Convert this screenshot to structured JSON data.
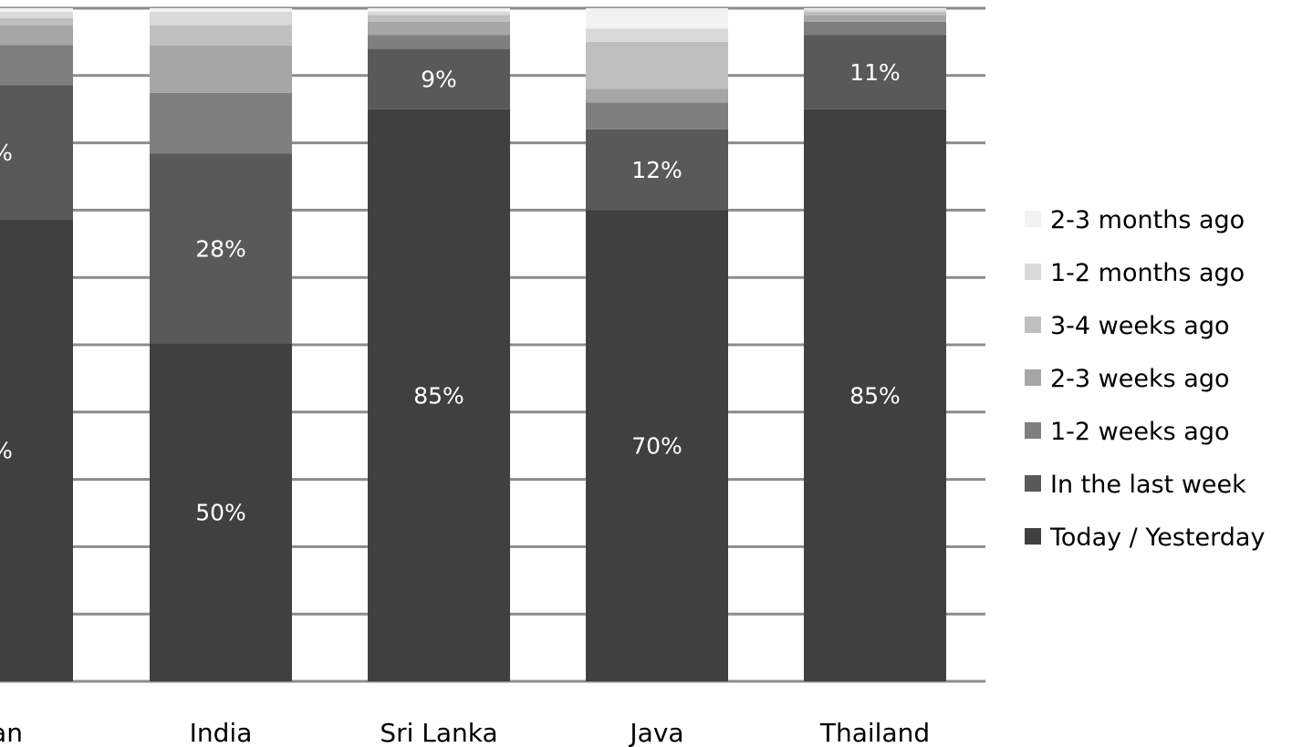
{
  "chart_data": {
    "type": "bar",
    "stacked": true,
    "percent_scale": true,
    "categories": [
      "tan",
      "India",
      "Sri Lanka",
      "Java",
      "Thailand"
    ],
    "series": [
      {
        "name": "Today / Yesterday",
        "color": "#404040",
        "values": [
          69,
          50,
          85,
          70,
          85
        ]
      },
      {
        "name": "In the last week",
        "color": "#595959",
        "values": [
          20,
          28,
          9,
          12,
          11
        ]
      },
      {
        "name": "1-2 weeks ago",
        "color": "#7f7f7f",
        "values": [
          6,
          9,
          2,
          4,
          2
        ]
      },
      {
        "name": "2-3 weeks ago",
        "color": "#a6a6a6",
        "values": [
          3,
          7,
          2,
          2,
          1
        ]
      },
      {
        "name": "3-4 weeks ago",
        "color": "#bfbfbf",
        "values": [
          1,
          3,
          1,
          7,
          0.5
        ]
      },
      {
        "name": "1-2 months ago",
        "color": "#d9d9d9",
        "values": [
          1,
          2,
          0.5,
          2,
          0.3
        ]
      },
      {
        "name": "2-3 months ago",
        "color": "#f2f2f2",
        "values": [
          0.5,
          0.5,
          0.5,
          3,
          0.2
        ]
      }
    ],
    "data_labels": [
      {
        "series": "Today / Yesterday",
        "category": "tan",
        "text": "%"
      },
      {
        "series": "In the last week",
        "category": "tan",
        "text": "%"
      },
      {
        "series": "Today / Yesterday",
        "category": "India",
        "text": "50%"
      },
      {
        "series": "In the last week",
        "category": "India",
        "text": "28%"
      },
      {
        "series": "Today / Yesterday",
        "category": "Sri Lanka",
        "text": "85%"
      },
      {
        "series": "In the last week",
        "category": "Sri Lanka",
        "text": "9%"
      },
      {
        "series": "Today / Yesterday",
        "category": "Java",
        "text": "70%"
      },
      {
        "series": "In the last week",
        "category": "Java",
        "text": "12%"
      },
      {
        "series": "Today / Yesterday",
        "category": "Thailand",
        "text": "85%"
      },
      {
        "series": "In the last week",
        "category": "Thailand",
        "text": "11%"
      }
    ],
    "ylim": [
      0,
      100
    ],
    "y_gridlines": [
      0,
      10,
      20,
      30,
      40,
      50,
      60,
      70,
      80,
      90,
      100
    ],
    "grid": true,
    "legend": "right",
    "title": "",
    "xlabel": "",
    "ylabel": ""
  }
}
